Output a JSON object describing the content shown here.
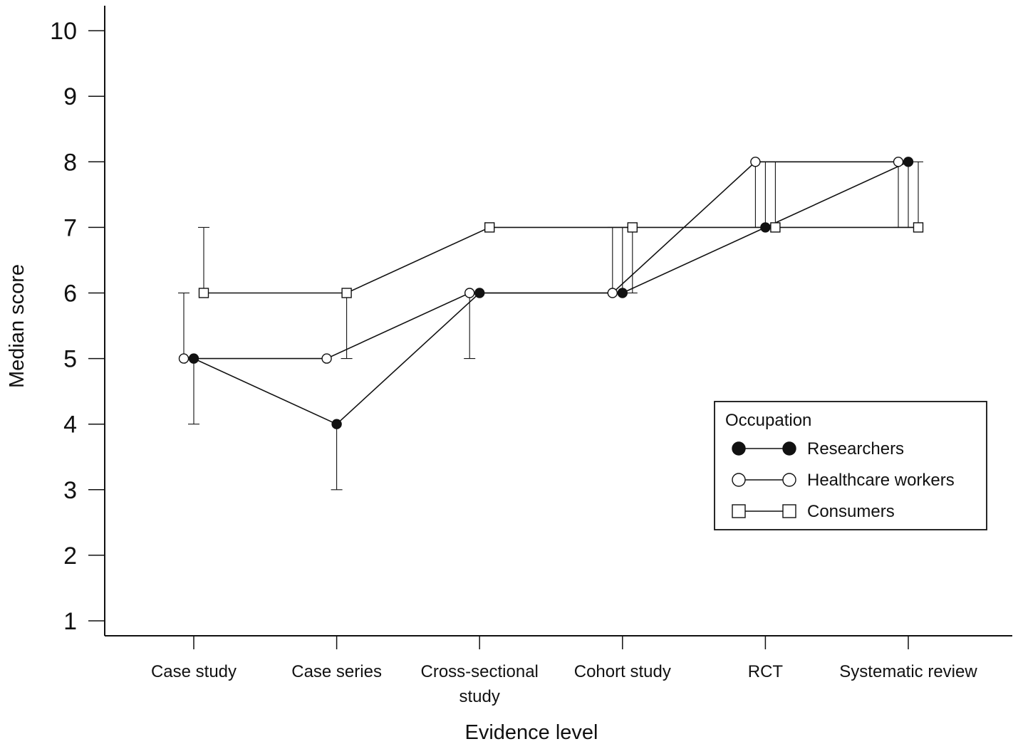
{
  "chart_data": {
    "type": "line",
    "xlabel": "Evidence level",
    "ylabel": "Median score",
    "ylim": [
      1,
      10
    ],
    "yticks": [
      1,
      2,
      3,
      4,
      5,
      6,
      7,
      8,
      9,
      10
    ],
    "categories": [
      [
        "Case study"
      ],
      [
        "Case series"
      ],
      [
        "Cross-sectional",
        "study"
      ],
      [
        "Cohort study"
      ],
      [
        "RCT"
      ],
      [
        "Systematic review"
      ]
    ],
    "legend": {
      "title": "Occupation",
      "position": "lower-right"
    },
    "series": [
      {
        "name": "Researchers",
        "marker": "filled-circle",
        "values": [
          5,
          4,
          6,
          6,
          7,
          8
        ],
        "error_low": [
          4,
          3,
          null,
          null,
          null,
          null
        ],
        "error_high": [
          null,
          null,
          null,
          null,
          null,
          null
        ]
      },
      {
        "name": "Healthcare workers",
        "marker": "open-circle",
        "values": [
          5,
          5,
          6,
          6,
          8,
          8
        ],
        "error_low": [
          null,
          null,
          5,
          null,
          null,
          null
        ],
        "error_high": [
          6,
          null,
          null,
          null,
          null,
          null
        ]
      },
      {
        "name": "Consumers",
        "marker": "open-square",
        "values": [
          6,
          6,
          7,
          7,
          7,
          7
        ],
        "error_low": [
          null,
          5,
          null,
          null,
          null,
          null
        ],
        "error_high": [
          7,
          null,
          null,
          null,
          null,
          null
        ]
      }
    ],
    "range_bars": [
      {
        "x_index": 3,
        "series": "Healthcare workers",
        "low": 6,
        "high": 7
      },
      {
        "x_index": 3,
        "series": "Researchers",
        "low": 6,
        "high": 7
      },
      {
        "x_index": 3,
        "series": "Consumers",
        "low": 6,
        "high": 7
      },
      {
        "x_index": 4,
        "series": "Healthcare workers",
        "low": 7,
        "high": 8
      },
      {
        "x_index": 4,
        "series": "Researchers",
        "low": 7,
        "high": 8
      },
      {
        "x_index": 4,
        "series": "Consumers",
        "low": 7,
        "high": 8
      },
      {
        "x_index": 5,
        "series": "Healthcare workers",
        "low": 7,
        "high": 8
      },
      {
        "x_index": 5,
        "series": "Researchers",
        "low": 7,
        "high": 8
      },
      {
        "x_index": 5,
        "series": "Consumers",
        "low": 7,
        "high": 8
      }
    ]
  }
}
